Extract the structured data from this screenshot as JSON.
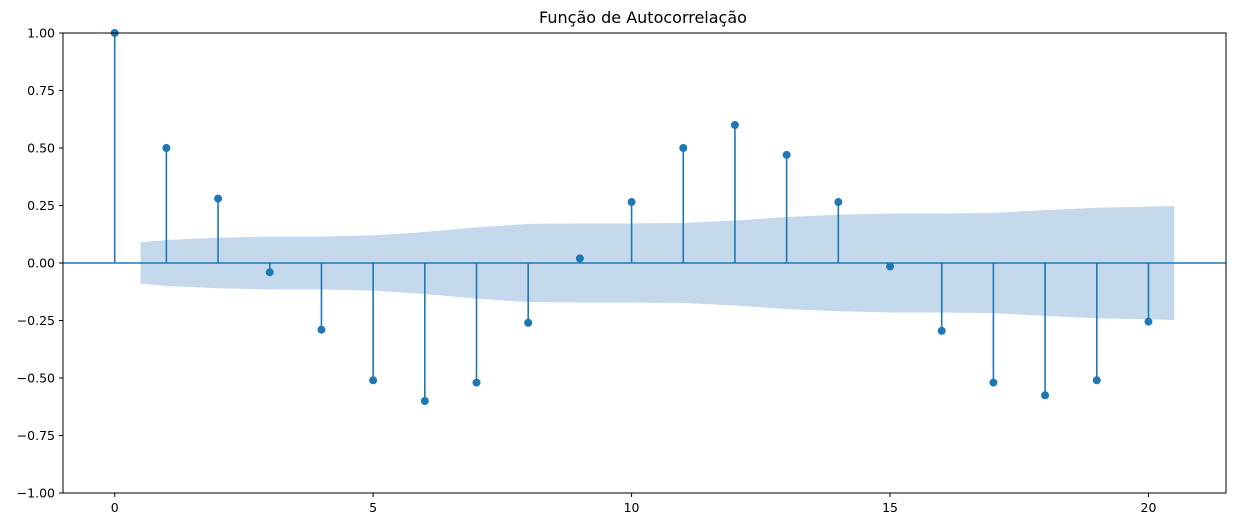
{
  "chart_data": {
    "type": "stem",
    "title": "Função de Autocorrelação",
    "xlabel": "",
    "ylabel": "",
    "xlim": [
      -1,
      21.5
    ],
    "ylim": [
      -1.0,
      1.0
    ],
    "x": [
      0,
      1,
      2,
      3,
      4,
      5,
      6,
      7,
      8,
      9,
      10,
      11,
      12,
      13,
      14,
      15,
      16,
      17,
      18,
      19,
      20
    ],
    "values": [
      1.0,
      0.5,
      0.28,
      -0.04,
      -0.29,
      -0.51,
      -0.6,
      -0.52,
      -0.26,
      0.02,
      0.265,
      0.5,
      0.6,
      0.47,
      0.265,
      -0.015,
      -0.295,
      -0.52,
      -0.575,
      -0.51,
      -0.255
    ],
    "confidence_band": {
      "x": [
        0.5,
        1,
        2,
        3,
        4,
        5,
        6,
        7,
        8,
        9,
        10,
        11,
        12,
        13,
        14,
        15,
        16,
        17,
        18,
        19,
        20,
        20.5
      ],
      "upper": [
        0.09,
        0.1,
        0.11,
        0.115,
        0.115,
        0.12,
        0.135,
        0.155,
        0.17,
        0.172,
        0.172,
        0.174,
        0.185,
        0.2,
        0.21,
        0.215,
        0.215,
        0.218,
        0.23,
        0.24,
        0.245,
        0.248
      ],
      "lower": [
        -0.09,
        -0.1,
        -0.11,
        -0.115,
        -0.115,
        -0.12,
        -0.135,
        -0.155,
        -0.17,
        -0.172,
        -0.172,
        -0.174,
        -0.185,
        -0.2,
        -0.21,
        -0.215,
        -0.215,
        -0.218,
        -0.23,
        -0.24,
        -0.245,
        -0.248
      ]
    },
    "xticks": [
      0,
      5,
      10,
      15,
      20
    ],
    "xtick_labels": [
      "0",
      "5",
      "10",
      "15",
      "20"
    ],
    "yticks": [
      1.0,
      0.75,
      0.5,
      0.25,
      0.0,
      -0.25,
      -0.5,
      -0.75,
      -1.0
    ],
    "ytick_labels": [
      "1.00",
      "0.75",
      "0.50",
      "0.25",
      "0.00",
      "−0.25",
      "−0.50",
      "−0.75",
      "−1.00"
    ],
    "grid": false,
    "legend": "none",
    "colors": {
      "stem": "#1f77b4",
      "band": "#c5d9ec",
      "axis": "#000000"
    }
  }
}
